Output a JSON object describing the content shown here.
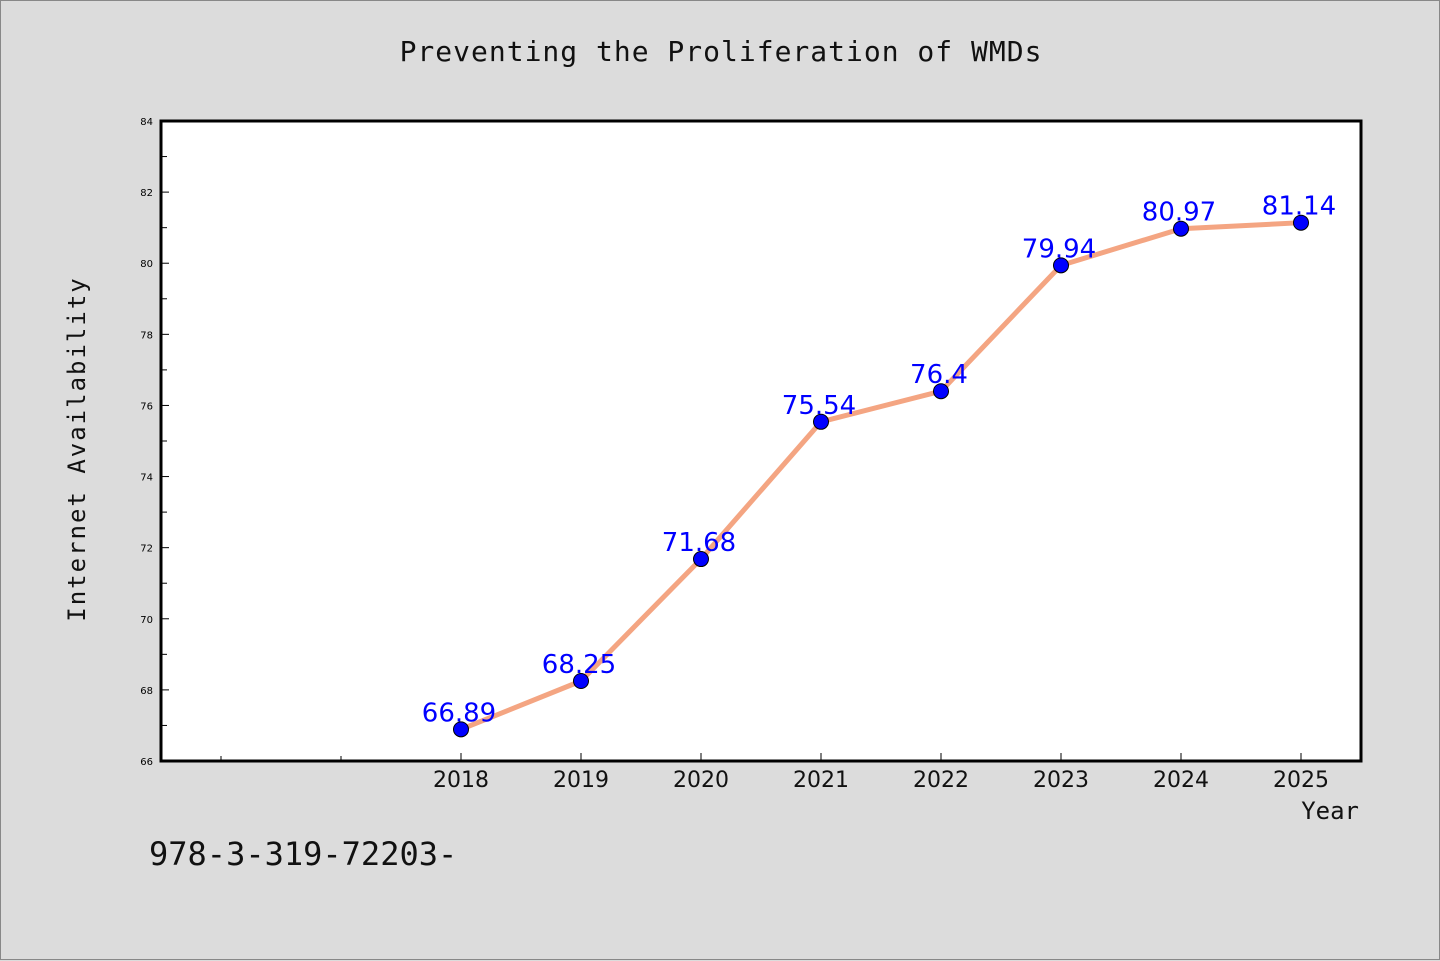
{
  "chart_data": {
    "type": "line",
    "title": "Preventing the Proliferation of WMDs",
    "xlabel": "Year",
    "ylabel": "Internet Availability",
    "categories": [
      "2018",
      "2019",
      "2020",
      "2021",
      "2022",
      "2023",
      "2024",
      "2025"
    ],
    "series": [
      {
        "values": [
          66.89,
          68.25,
          71.68,
          75.54,
          76.4,
          79.94,
          80.97,
          81.14
        ],
        "labels": [
          "66.89",
          "68.25",
          "71.68",
          "75.54",
          "76.4",
          "79.94",
          "80.97",
          "81.14"
        ]
      }
    ],
    "ylim": [
      66,
      84
    ],
    "yticks": [
      "66",
      "68",
      "70",
      "72",
      "74",
      "76",
      "78",
      "80",
      "82",
      "84"
    ],
    "grid": false,
    "legend": "none",
    "colors": {
      "line": "#f4a582",
      "marker": "#0000ff",
      "data_label": "#0000ff",
      "plot_bg": "#ffffff",
      "page_bg": "#dcdcdc"
    }
  },
  "footnote": "978-3-319-72203-"
}
